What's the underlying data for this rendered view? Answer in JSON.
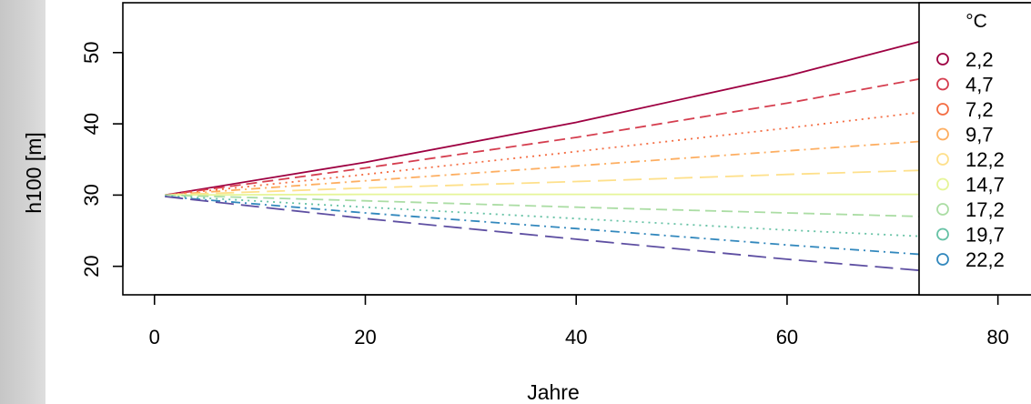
{
  "chart_data": {
    "type": "line",
    "xlabel": "Jahre",
    "ylabel": "h100 [m]",
    "xlim": [
      -3,
      84
    ],
    "ylim": [
      16,
      57
    ],
    "x_ticks": [
      0,
      20,
      40,
      60,
      80
    ],
    "y_ticks": [
      20,
      30,
      40,
      50
    ],
    "grid": false,
    "legend": {
      "title": "°C",
      "placement": "right",
      "marker": "open-circle"
    },
    "series": [
      {
        "name": "2,2",
        "color": "#9e0142",
        "dash": "solid",
        "x": [
          1,
          20,
          40,
          60,
          80
        ],
        "y": [
          30.0,
          34.6,
          40.2,
          46.7,
          54.4
        ]
      },
      {
        "name": "4,7",
        "color": "#d53e4f",
        "dash": "dashed",
        "x": [
          1,
          20,
          40,
          60,
          80
        ],
        "y": [
          30.0,
          33.8,
          38.1,
          42.9,
          48.3
        ]
      },
      {
        "name": "7,2",
        "color": "#f46d43",
        "dash": "dotted",
        "x": [
          1,
          20,
          40,
          60,
          80
        ],
        "y": [
          30.0,
          32.9,
          36.1,
          39.4,
          42.9
        ]
      },
      {
        "name": "9,7",
        "color": "#fdae61",
        "dash": "dotdash",
        "x": [
          1,
          20,
          40,
          60,
          80
        ],
        "y": [
          30.0,
          32.0,
          34.1,
          36.2,
          38.3
        ]
      },
      {
        "name": "12,2",
        "color": "#fee08b",
        "dash": "longdash",
        "x": [
          1,
          20,
          40,
          60,
          80
        ],
        "y": [
          30.0,
          31.0,
          31.9,
          32.9,
          33.8
        ]
      },
      {
        "name": "14,7",
        "color": "#e6f598",
        "dash": "solid",
        "x": [
          1,
          20,
          40,
          60,
          80
        ],
        "y": [
          30.0,
          30.1,
          30.1,
          30.1,
          30.1
        ]
      },
      {
        "name": "17,2",
        "color": "#abdda4",
        "dash": "dashed",
        "x": [
          1,
          20,
          40,
          60,
          80
        ],
        "y": [
          30.0,
          29.2,
          28.3,
          27.5,
          26.7
        ]
      },
      {
        "name": "19,7",
        "color": "#66c2a5",
        "dash": "dotted",
        "x": [
          1,
          20,
          40,
          60,
          80
        ],
        "y": [
          29.9,
          28.3,
          26.7,
          25.1,
          23.7
        ]
      },
      {
        "name": "22,2",
        "color": "#3288bd",
        "dash": "dotdash",
        "x": [
          1,
          20,
          40,
          60,
          80
        ],
        "y": [
          29.8,
          27.5,
          25.3,
          23.0,
          20.9
        ]
      },
      {
        "name": "",
        "color": "#5e4fa2",
        "dash": "longdash",
        "x": [
          1,
          20,
          40,
          60,
          80
        ],
        "y": [
          29.8,
          26.7,
          23.8,
          21.0,
          18.5
        ]
      }
    ]
  }
}
